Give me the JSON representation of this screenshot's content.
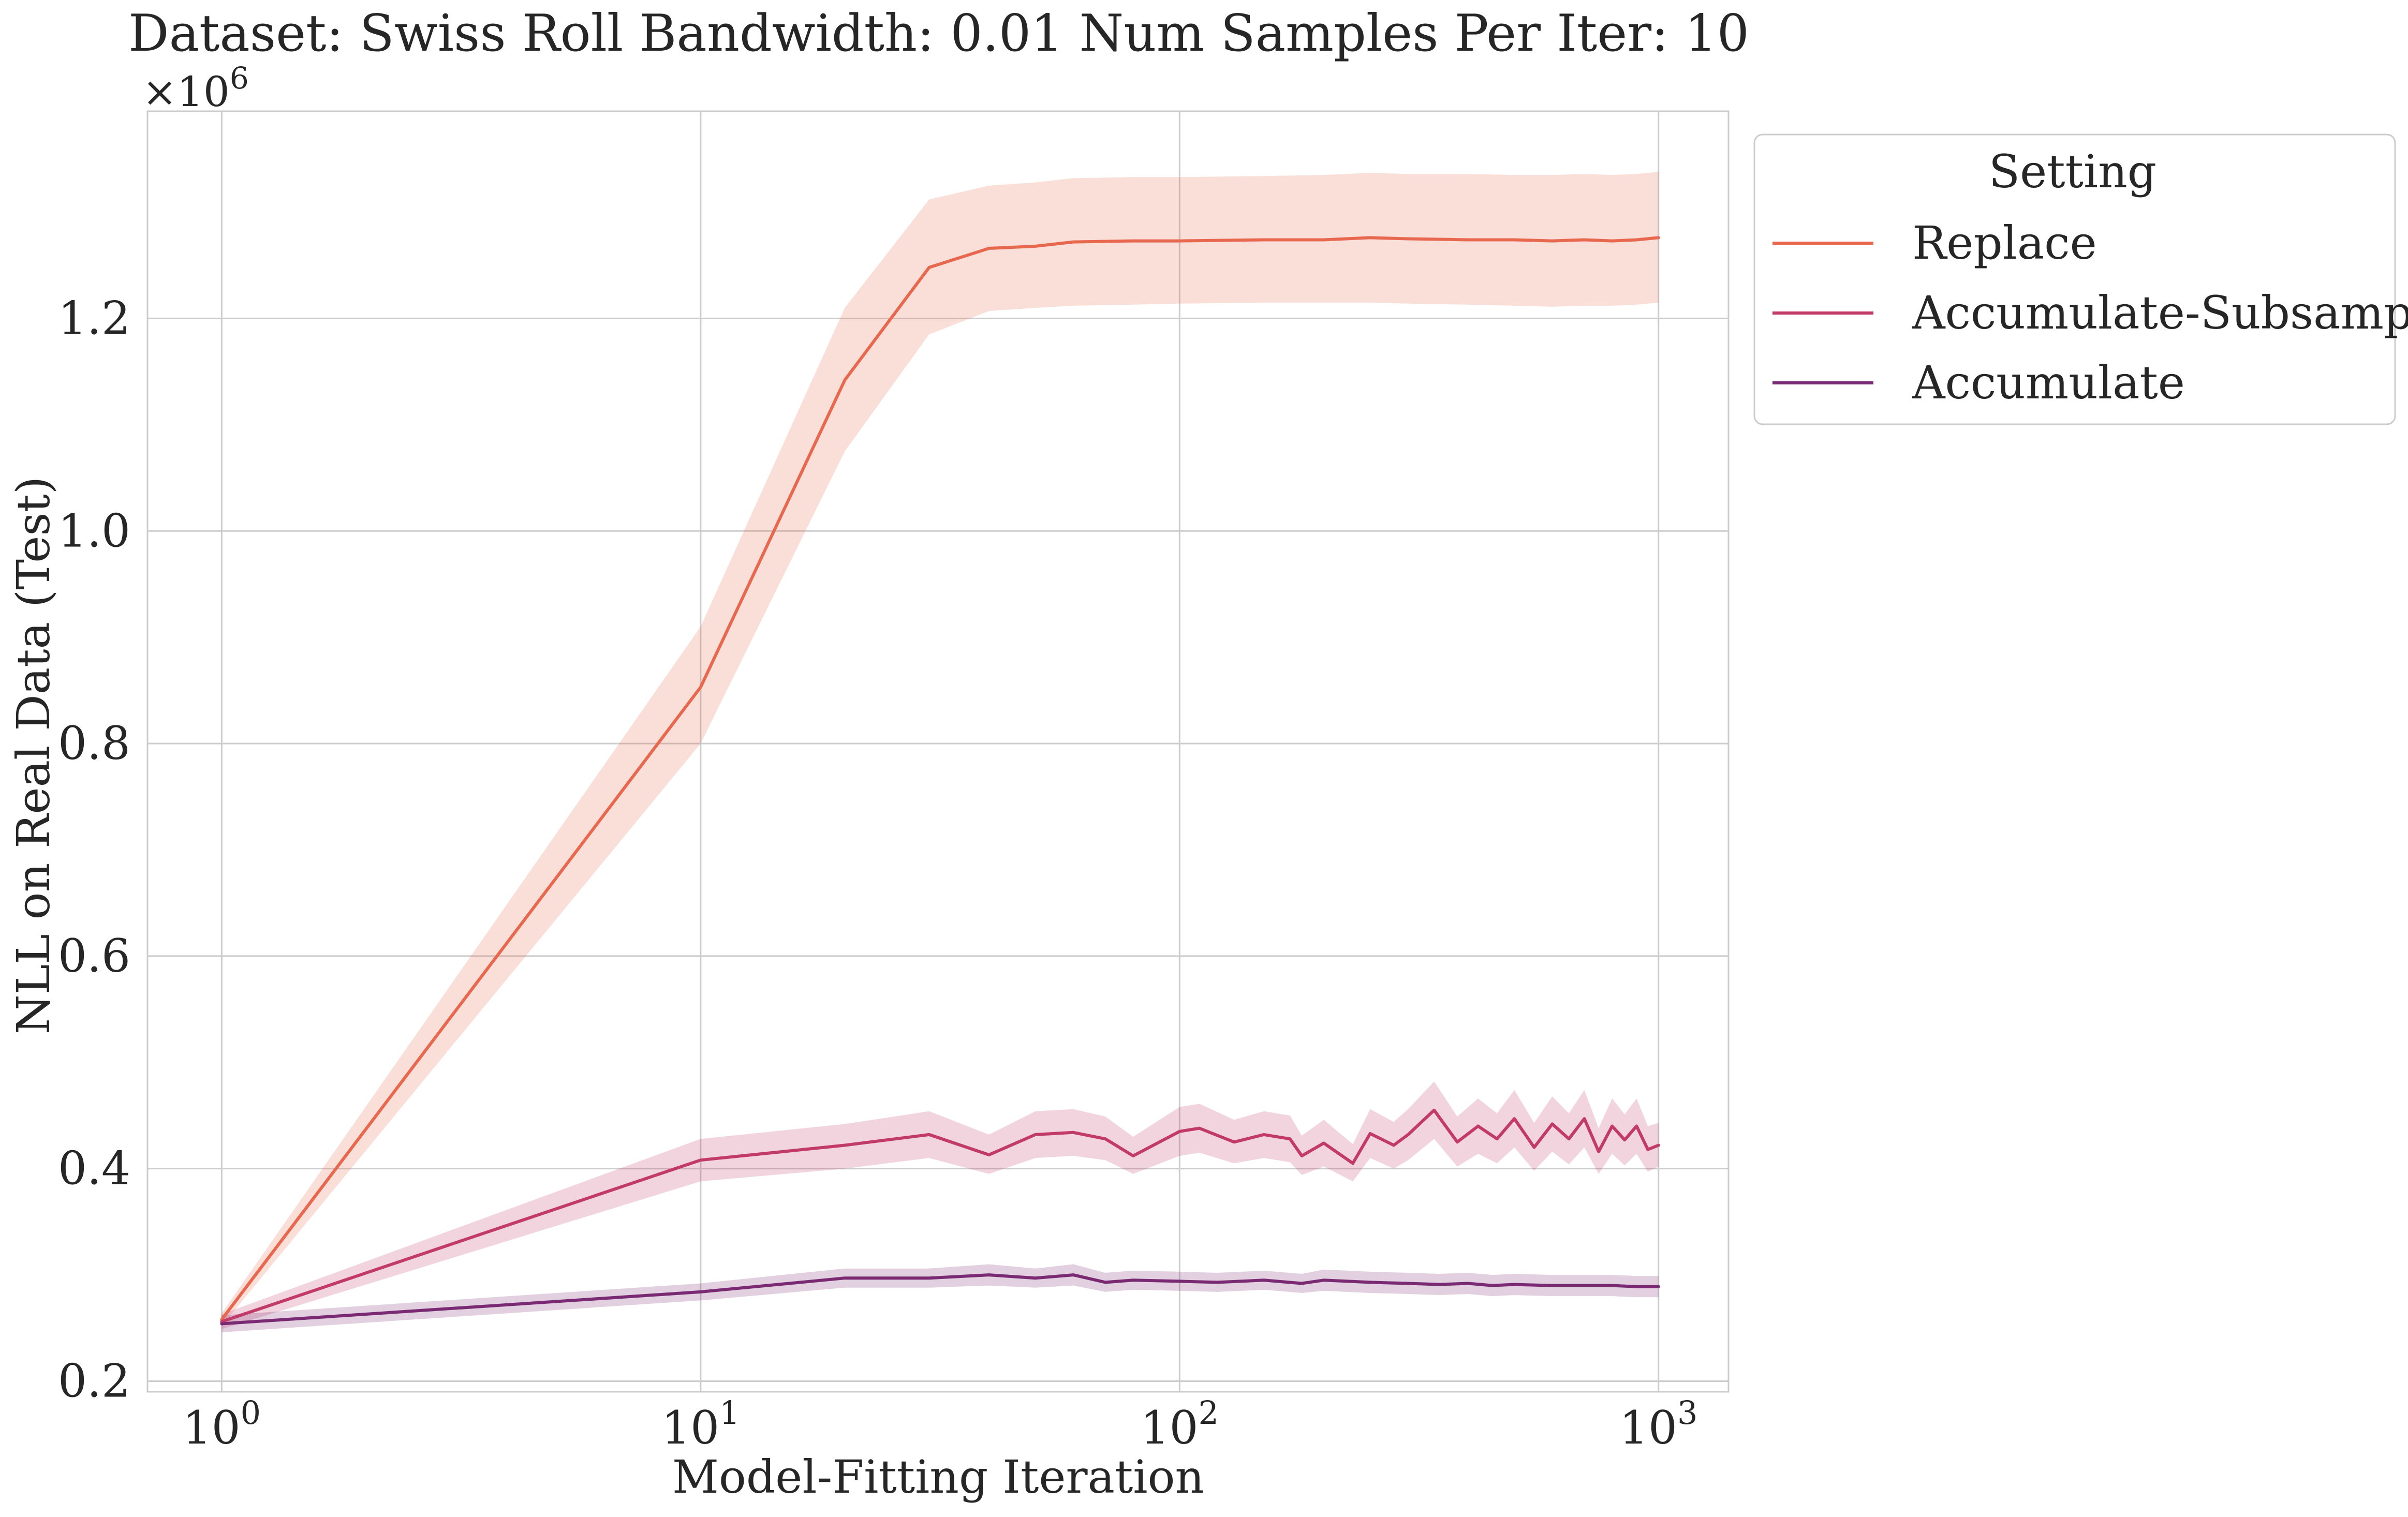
{
  "chart_data": {
    "type": "line",
    "title": "Dataset: Swiss Roll Bandwidth: 0.01 Num Samples Per Iter: 10",
    "xlabel": "Model-Fitting Iteration",
    "ylabel": "NLL on Real Data (Test)",
    "y_offset_label": "×10",
    "y_offset_exponent": "6",
    "x_scale": "log",
    "xlim": [
      0.7,
      1400
    ],
    "ylim": [
      0.19,
      1.395
    ],
    "x_ticks": [
      {
        "value": 1,
        "base": "10",
        "exp": "0"
      },
      {
        "value": 10,
        "base": "10",
        "exp": "1"
      },
      {
        "value": 100,
        "base": "10",
        "exp": "2"
      },
      {
        "value": 1000,
        "base": "10",
        "exp": "3"
      }
    ],
    "y_ticks": [
      {
        "value": 0.2,
        "label": "0.2"
      },
      {
        "value": 0.4,
        "label": "0.4"
      },
      {
        "value": 0.6,
        "label": "0.6"
      },
      {
        "value": 0.8,
        "label": "0.8"
      },
      {
        "value": 1.0,
        "label": "1.0"
      },
      {
        "value": 1.2,
        "label": "1.2"
      }
    ],
    "grid": true,
    "legend": {
      "title": "Setting",
      "placement": "outside-top-right"
    },
    "series": [
      {
        "name": "Replace",
        "color": "#e8684f",
        "x": [
          1,
          10,
          20,
          30,
          40,
          50,
          60,
          80,
          100,
          150,
          200,
          250,
          300,
          400,
          500,
          600,
          700,
          800,
          900,
          1000
        ],
        "y": [
          0.258,
          0.853,
          1.142,
          1.248,
          1.266,
          1.268,
          1.272,
          1.273,
          1.273,
          1.274,
          1.274,
          1.276,
          1.275,
          1.274,
          1.274,
          1.273,
          1.274,
          1.273,
          1.274,
          1.276
        ],
        "lower": [
          0.252,
          0.8,
          1.075,
          1.185,
          1.207,
          1.21,
          1.212,
          1.213,
          1.214,
          1.215,
          1.215,
          1.215,
          1.214,
          1.213,
          1.212,
          1.211,
          1.212,
          1.212,
          1.213,
          1.215
        ],
        "upper": [
          0.264,
          0.91,
          1.21,
          1.312,
          1.325,
          1.328,
          1.332,
          1.333,
          1.333,
          1.334,
          1.335,
          1.337,
          1.336,
          1.336,
          1.335,
          1.335,
          1.336,
          1.335,
          1.336,
          1.338
        ]
      },
      {
        "name": "Accumulate-Subsample",
        "color": "#c23b68",
        "x": [
          1,
          10,
          20,
          30,
          40,
          50,
          60,
          70,
          80,
          100,
          110,
          130,
          150,
          170,
          180,
          200,
          230,
          250,
          280,
          300,
          340,
          380,
          420,
          460,
          500,
          550,
          600,
          650,
          700,
          750,
          800,
          850,
          900,
          950,
          1000
        ],
        "y": [
          0.256,
          0.408,
          0.422,
          0.432,
          0.413,
          0.432,
          0.434,
          0.428,
          0.412,
          0.435,
          0.438,
          0.425,
          0.432,
          0.428,
          0.412,
          0.424,
          0.405,
          0.433,
          0.422,
          0.432,
          0.455,
          0.425,
          0.44,
          0.428,
          0.447,
          0.42,
          0.442,
          0.428,
          0.447,
          0.416,
          0.44,
          0.427,
          0.44,
          0.418,
          0.422
        ],
        "lower": [
          0.249,
          0.388,
          0.4,
          0.41,
          0.395,
          0.41,
          0.412,
          0.408,
          0.395,
          0.412,
          0.415,
          0.405,
          0.41,
          0.406,
          0.394,
          0.402,
          0.388,
          0.41,
          0.4,
          0.408,
          0.428,
          0.402,
          0.414,
          0.405,
          0.42,
          0.398,
          0.416,
          0.404,
          0.42,
          0.395,
          0.414,
          0.403,
          0.414,
          0.397,
          0.402
        ],
        "upper": [
          0.263,
          0.428,
          0.442,
          0.454,
          0.432,
          0.454,
          0.456,
          0.449,
          0.43,
          0.458,
          0.461,
          0.446,
          0.454,
          0.45,
          0.431,
          0.446,
          0.423,
          0.456,
          0.444,
          0.456,
          0.482,
          0.449,
          0.466,
          0.452,
          0.474,
          0.443,
          0.468,
          0.452,
          0.474,
          0.438,
          0.466,
          0.451,
          0.466,
          0.44,
          0.443
        ]
      },
      {
        "name": "Accumulate",
        "color": "#7a2a72",
        "x": [
          1,
          10,
          20,
          30,
          40,
          50,
          60,
          70,
          80,
          100,
          120,
          150,
          180,
          200,
          250,
          300,
          350,
          400,
          450,
          500,
          600,
          700,
          800,
          900,
          1000
        ],
        "y": [
          0.254,
          0.284,
          0.297,
          0.297,
          0.3,
          0.297,
          0.3,
          0.293,
          0.295,
          0.294,
          0.293,
          0.295,
          0.292,
          0.295,
          0.293,
          0.292,
          0.291,
          0.292,
          0.29,
          0.291,
          0.29,
          0.29,
          0.29,
          0.289,
          0.289
        ],
        "lower": [
          0.246,
          0.276,
          0.288,
          0.288,
          0.29,
          0.288,
          0.29,
          0.284,
          0.286,
          0.285,
          0.284,
          0.286,
          0.283,
          0.285,
          0.283,
          0.282,
          0.281,
          0.282,
          0.28,
          0.281,
          0.28,
          0.28,
          0.28,
          0.279,
          0.279
        ],
        "upper": [
          0.262,
          0.292,
          0.306,
          0.306,
          0.31,
          0.306,
          0.31,
          0.302,
          0.304,
          0.303,
          0.302,
          0.304,
          0.301,
          0.305,
          0.303,
          0.302,
          0.301,
          0.302,
          0.3,
          0.301,
          0.3,
          0.3,
          0.3,
          0.299,
          0.299
        ]
      }
    ]
  }
}
